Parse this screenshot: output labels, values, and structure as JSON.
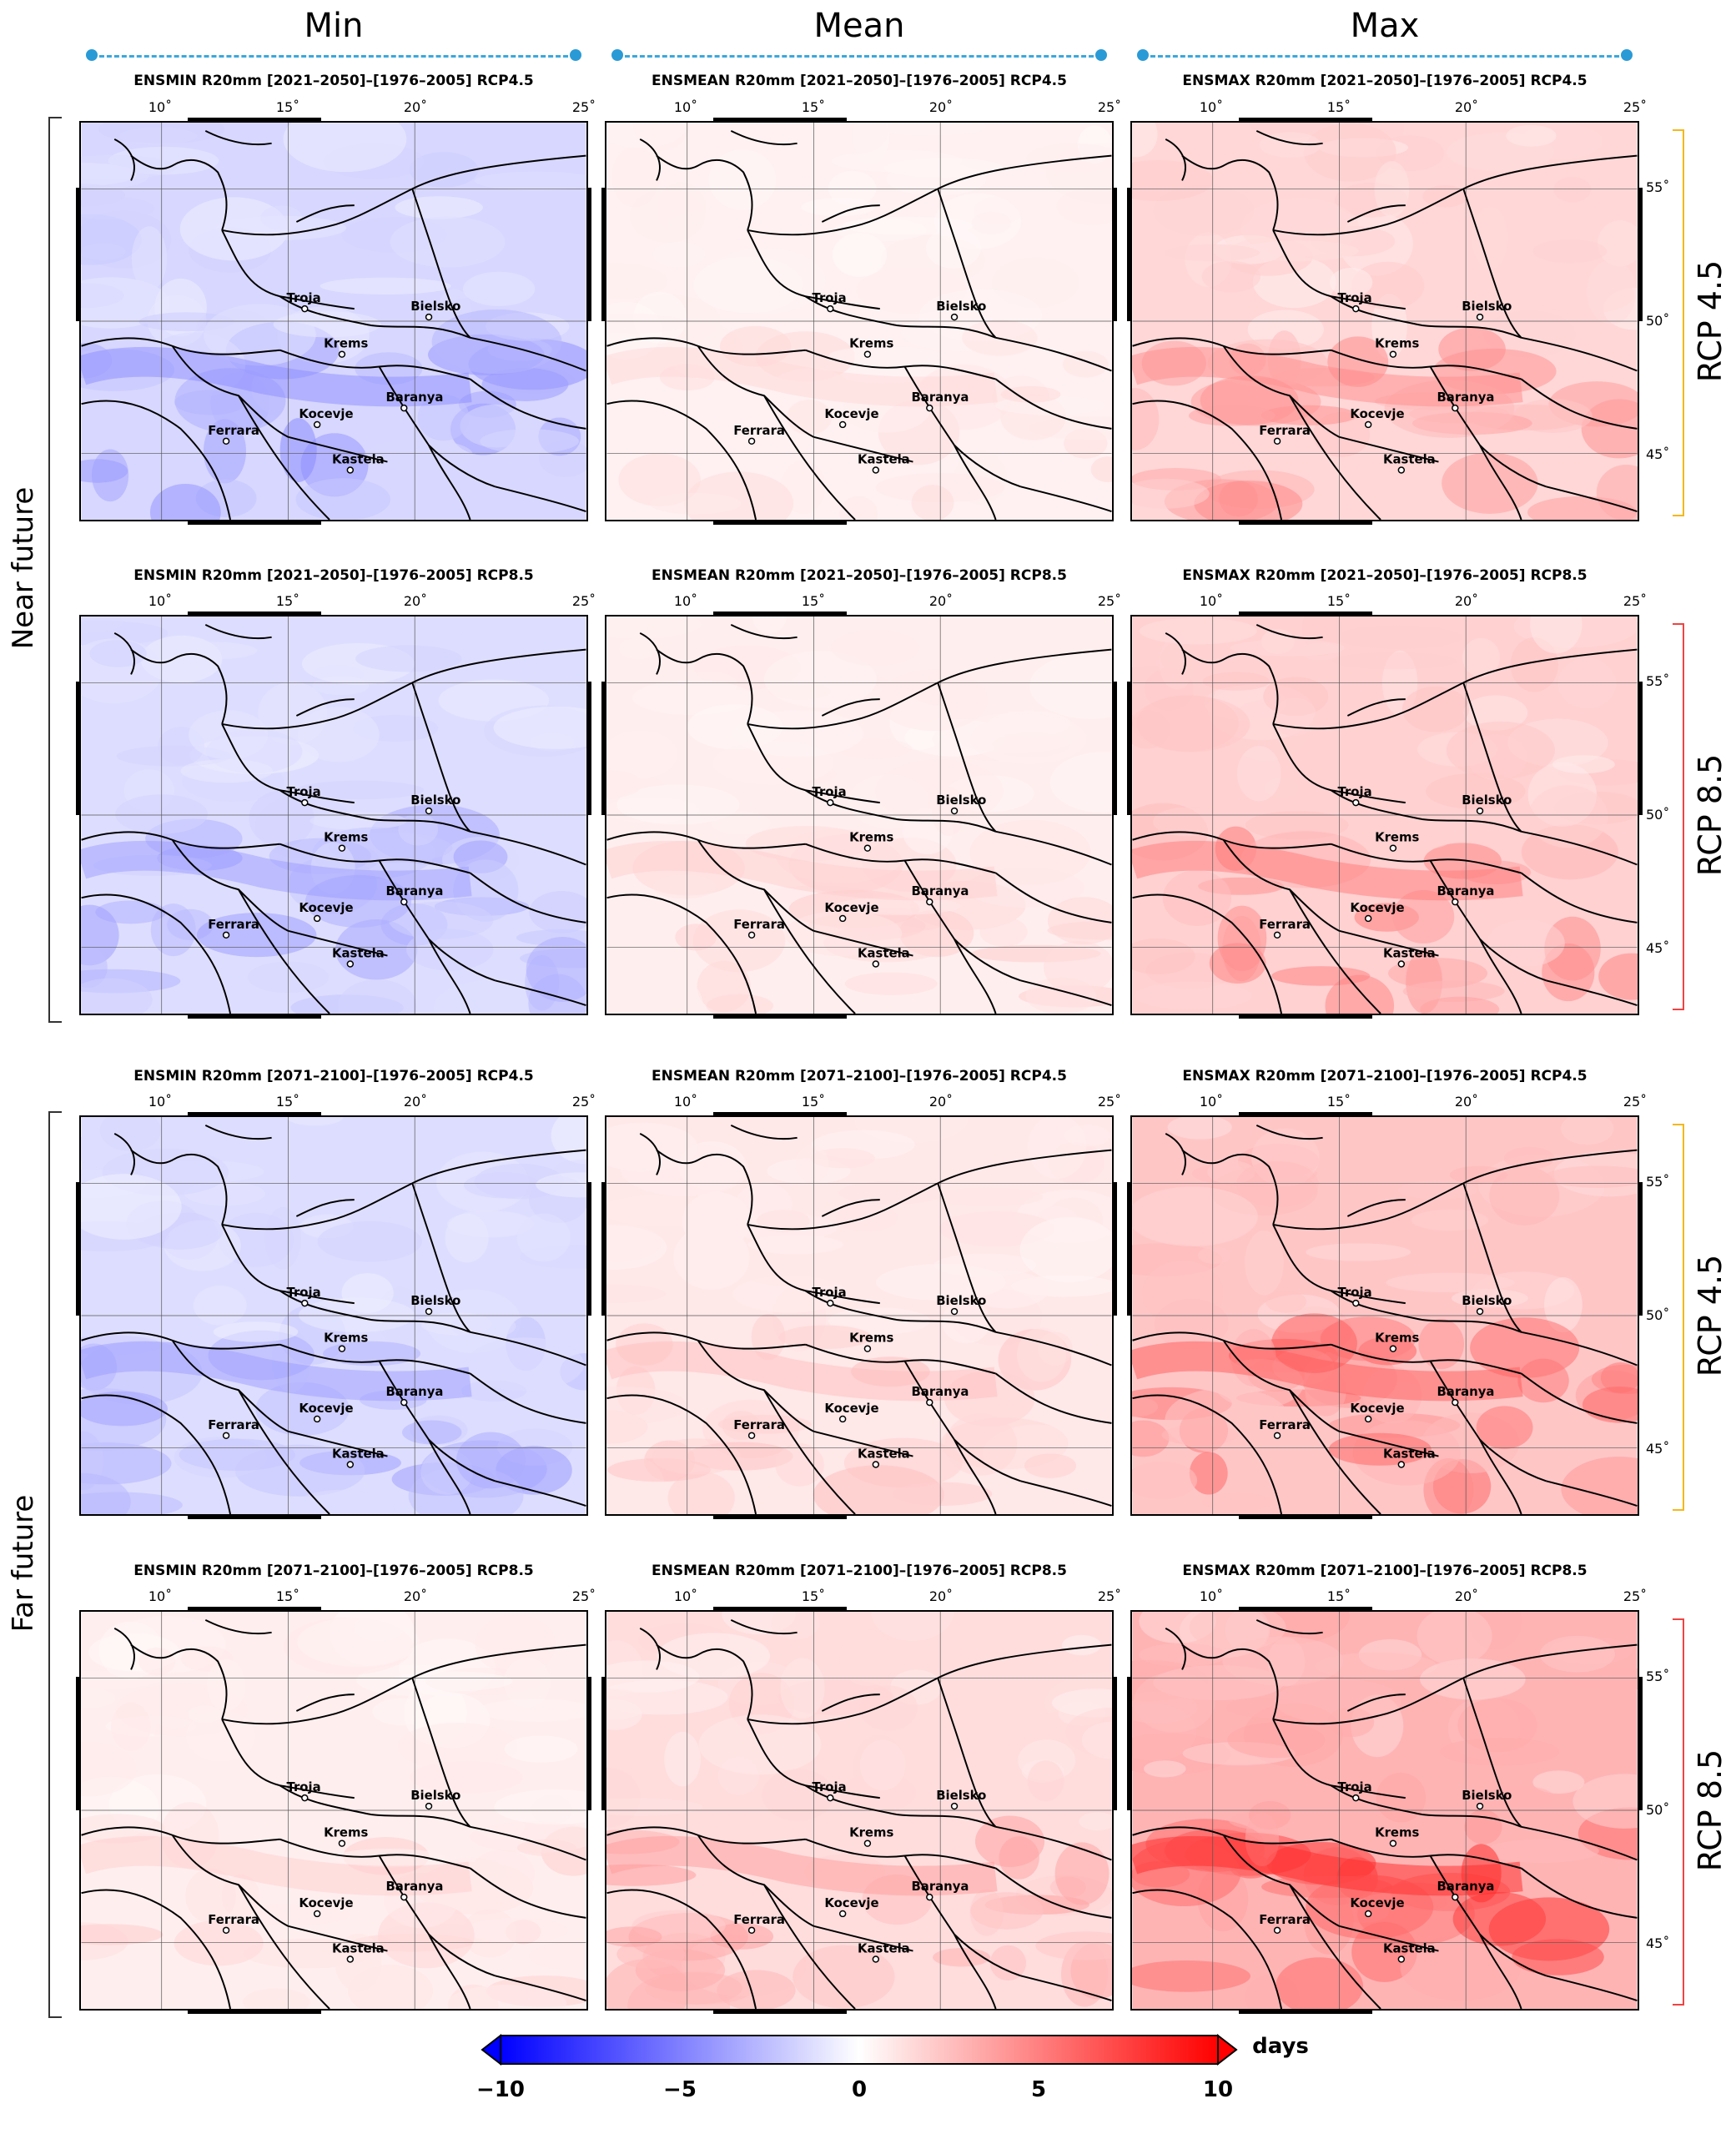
{
  "columns": [
    {
      "label": "Min",
      "key": "min"
    },
    {
      "label": "Mean",
      "key": "mean"
    },
    {
      "label": "Max",
      "key": "max"
    }
  ],
  "rows": [
    {
      "period": "Near future",
      "scenario": "RCP 4.5",
      "bracket_color": "#f5b81c",
      "titles": [
        "ENSMIN R20mm [2021–2050]–[1976–2005] RCP4.5",
        "ENSMEAN R20mm [2021–2050]–[1976–2005] RCP4.5",
        "ENSMAX R20mm [2021–2050]–[1976–2005] RCP4.5"
      ],
      "intensity": [
        -0.35,
        0.12,
        0.35
      ]
    },
    {
      "period": "Near future",
      "scenario": "RCP 8.5",
      "bracket_color": "#ee4444",
      "titles": [
        "ENSMIN R20mm [2021–2050]–[1976–2005] RCP8.5",
        "ENSMEAN R20mm [2021–2050]–[1976–2005] RCP8.5",
        "ENSMAX R20mm [2021–2050]–[1976–2005] RCP8.5"
      ],
      "intensity": [
        -0.3,
        0.15,
        0.4
      ]
    },
    {
      "period": "Far future",
      "scenario": "RCP 4.5",
      "bracket_color": "#f5b81c",
      "titles": [
        "ENSMIN R20mm [2071–2100]–[1976–2005] RCP4.5",
        "ENSMEAN R20mm [2071–2100]–[1976–2005] RCP4.5",
        "ENSMAX R20mm [2071–2100]–[1976–2005] RCP4.5"
      ],
      "intensity": [
        -0.3,
        0.2,
        0.5
      ]
    },
    {
      "period": "Far future",
      "scenario": "RCP 8.5",
      "bracket_color": "#ee4444",
      "titles": [
        "ENSMIN R20mm [2071–2100]–[1976–2005] RCP8.5",
        "ENSMEAN R20mm [2071–2100]–[1976–2005] RCP8.5",
        "ENSMAX R20mm [2071–2100]–[1976–2005] RCP8.5"
      ],
      "intensity": [
        0.15,
        0.3,
        0.65
      ]
    }
  ],
  "period_labels": [
    "Near future",
    "Far future"
  ],
  "lon_ticks": [
    "10˚",
    "15˚",
    "20˚",
    "25˚"
  ],
  "lat_ticks": [
    "55˚",
    "50˚",
    "45˚"
  ],
  "cities": [
    "Troja",
    "Bielsko",
    "Krems",
    "Baranya",
    "Kocevje",
    "Ferrara",
    "Kastela"
  ],
  "colorbar": {
    "ticks": [
      "−10",
      "−5",
      "0",
      "5",
      "10"
    ],
    "unit": "days",
    "min_color": "#0000ff",
    "mid_color": "#ffffff",
    "max_color": "#ff0000"
  }
}
